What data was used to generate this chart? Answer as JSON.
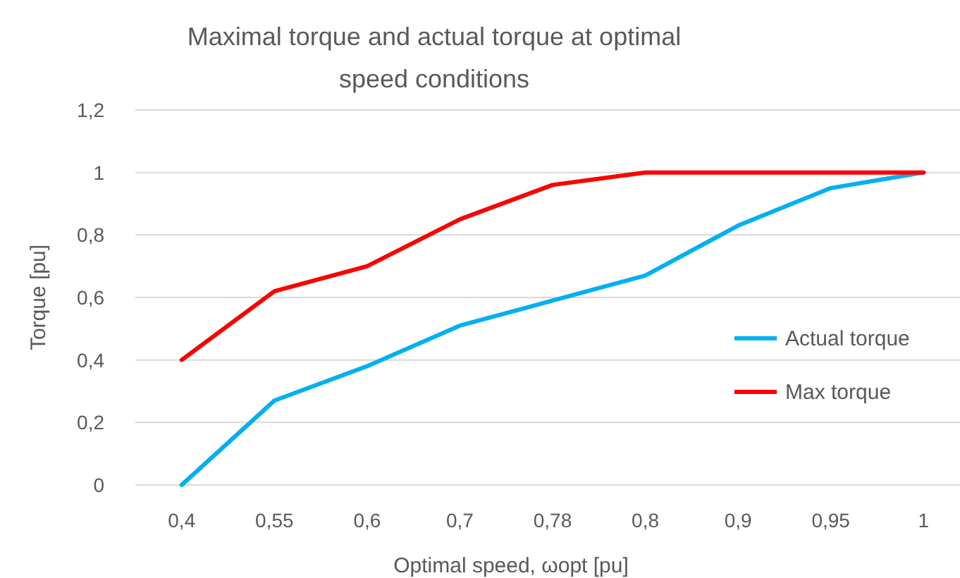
{
  "chart_data": {
    "type": "line",
    "title": "Maximal torque and actual torque at optimal speed conditions",
    "xlabel": "Optimal speed, ωopt [pu]",
    "ylabel": "Torque [pu]",
    "categories": [
      "0,4",
      "0,55",
      "0,6",
      "0,7",
      "0,78",
      "0,8",
      "0,9",
      "0,95",
      "1"
    ],
    "series": [
      {
        "name": "Actual torque",
        "color": "#00b0f0",
        "values": [
          0,
          0.27,
          0.38,
          0.51,
          0.59,
          0.67,
          0.83,
          0.95,
          1
        ]
      },
      {
        "name": "Max torque",
        "color": "#ff0000",
        "values": [
          0.4,
          0.62,
          0.7,
          0.85,
          0.96,
          1,
          1,
          1,
          1
        ]
      }
    ],
    "ylim": [
      0,
      1.2
    ],
    "yticks": [
      0,
      {
        "value": 0.2,
        "label": "0,2"
      },
      {
        "value": 0.4,
        "label": "0,4"
      },
      {
        "value": 0.6,
        "label": "0,6"
      },
      {
        "value": 0.8,
        "label": "0,8"
      },
      1,
      {
        "value": 1.2,
        "label": "1,2"
      }
    ],
    "grid": "y",
    "legend": "right",
    "marker": "none",
    "line_style": "solid"
  }
}
